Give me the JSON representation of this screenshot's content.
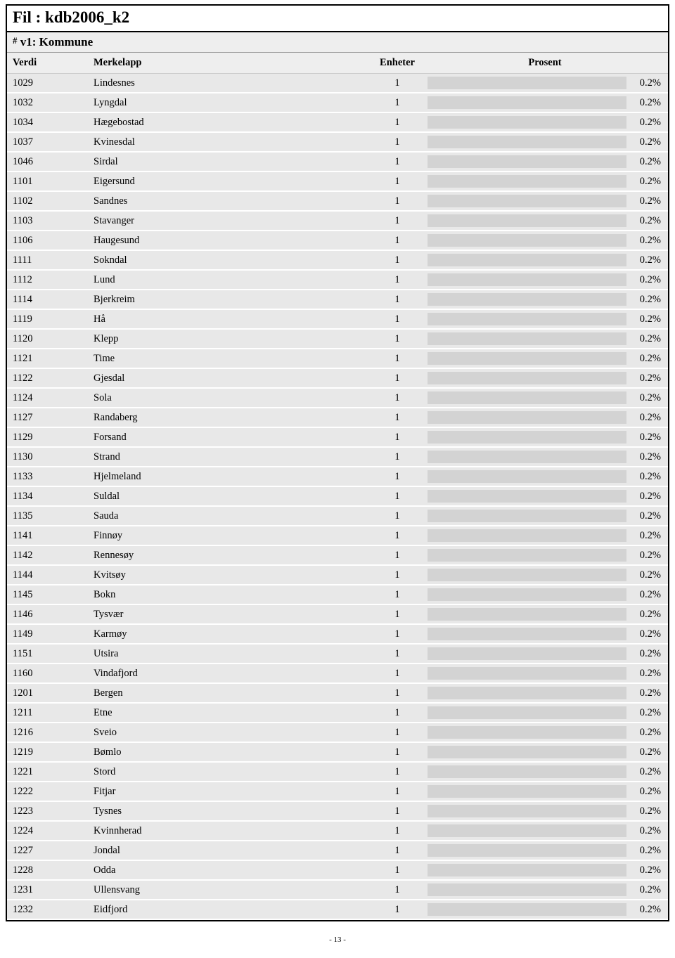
{
  "title_prefix": "Fil : ",
  "title_value": "kdb2006_k2",
  "subheader_hash": "#",
  "subheader_text": " v1: Kommune",
  "columns": {
    "verdi": "Verdi",
    "merkelapp": "Merkelapp",
    "enheter": "Enheter",
    "prosent": "Prosent"
  },
  "bar_color": "#d3d3d3",
  "row_bg": "#e8e8e8",
  "rows": [
    {
      "verdi": "1029",
      "merkelapp": "Lindesnes",
      "enheter": "1",
      "prosent": "0.2%"
    },
    {
      "verdi": "1032",
      "merkelapp": "Lyngdal",
      "enheter": "1",
      "prosent": "0.2%"
    },
    {
      "verdi": "1034",
      "merkelapp": "Hægebostad",
      "enheter": "1",
      "prosent": "0.2%"
    },
    {
      "verdi": "1037",
      "merkelapp": "Kvinesdal",
      "enheter": "1",
      "prosent": "0.2%"
    },
    {
      "verdi": "1046",
      "merkelapp": "Sirdal",
      "enheter": "1",
      "prosent": "0.2%"
    },
    {
      "verdi": "1101",
      "merkelapp": "Eigersund",
      "enheter": "1",
      "prosent": "0.2%"
    },
    {
      "verdi": "1102",
      "merkelapp": "Sandnes",
      "enheter": "1",
      "prosent": "0.2%"
    },
    {
      "verdi": "1103",
      "merkelapp": "Stavanger",
      "enheter": "1",
      "prosent": "0.2%"
    },
    {
      "verdi": "1106",
      "merkelapp": "Haugesund",
      "enheter": "1",
      "prosent": "0.2%"
    },
    {
      "verdi": "1111",
      "merkelapp": "Sokndal",
      "enheter": "1",
      "prosent": "0.2%"
    },
    {
      "verdi": "1112",
      "merkelapp": "Lund",
      "enheter": "1",
      "prosent": "0.2%"
    },
    {
      "verdi": "1114",
      "merkelapp": "Bjerkreim",
      "enheter": "1",
      "prosent": "0.2%"
    },
    {
      "verdi": "1119",
      "merkelapp": "Hå",
      "enheter": "1",
      "prosent": "0.2%"
    },
    {
      "verdi": "1120",
      "merkelapp": "Klepp",
      "enheter": "1",
      "prosent": "0.2%"
    },
    {
      "verdi": "1121",
      "merkelapp": "Time",
      "enheter": "1",
      "prosent": "0.2%"
    },
    {
      "verdi": "1122",
      "merkelapp": "Gjesdal",
      "enheter": "1",
      "prosent": "0.2%"
    },
    {
      "verdi": "1124",
      "merkelapp": "Sola",
      "enheter": "1",
      "prosent": "0.2%"
    },
    {
      "verdi": "1127",
      "merkelapp": "Randaberg",
      "enheter": "1",
      "prosent": "0.2%"
    },
    {
      "verdi": "1129",
      "merkelapp": "Forsand",
      "enheter": "1",
      "prosent": "0.2%"
    },
    {
      "verdi": "1130",
      "merkelapp": "Strand",
      "enheter": "1",
      "prosent": "0.2%"
    },
    {
      "verdi": "1133",
      "merkelapp": "Hjelmeland",
      "enheter": "1",
      "prosent": "0.2%"
    },
    {
      "verdi": "1134",
      "merkelapp": "Suldal",
      "enheter": "1",
      "prosent": "0.2%"
    },
    {
      "verdi": "1135",
      "merkelapp": "Sauda",
      "enheter": "1",
      "prosent": "0.2%"
    },
    {
      "verdi": "1141",
      "merkelapp": "Finnøy",
      "enheter": "1",
      "prosent": "0.2%"
    },
    {
      "verdi": "1142",
      "merkelapp": "Rennesøy",
      "enheter": "1",
      "prosent": "0.2%"
    },
    {
      "verdi": "1144",
      "merkelapp": "Kvitsøy",
      "enheter": "1",
      "prosent": "0.2%"
    },
    {
      "verdi": "1145",
      "merkelapp": "Bokn",
      "enheter": "1",
      "prosent": "0.2%"
    },
    {
      "verdi": "1146",
      "merkelapp": "Tysvær",
      "enheter": "1",
      "prosent": "0.2%"
    },
    {
      "verdi": "1149",
      "merkelapp": "Karmøy",
      "enheter": "1",
      "prosent": "0.2%"
    },
    {
      "verdi": "1151",
      "merkelapp": "Utsira",
      "enheter": "1",
      "prosent": "0.2%"
    },
    {
      "verdi": "1160",
      "merkelapp": "Vindafjord",
      "enheter": "1",
      "prosent": "0.2%"
    },
    {
      "verdi": "1201",
      "merkelapp": "Bergen",
      "enheter": "1",
      "prosent": "0.2%"
    },
    {
      "verdi": "1211",
      "merkelapp": "Etne",
      "enheter": "1",
      "prosent": "0.2%"
    },
    {
      "verdi": "1216",
      "merkelapp": "Sveio",
      "enheter": "1",
      "prosent": "0.2%"
    },
    {
      "verdi": "1219",
      "merkelapp": "Bømlo",
      "enheter": "1",
      "prosent": "0.2%"
    },
    {
      "verdi": "1221",
      "merkelapp": "Stord",
      "enheter": "1",
      "prosent": "0.2%"
    },
    {
      "verdi": "1222",
      "merkelapp": "Fitjar",
      "enheter": "1",
      "prosent": "0.2%"
    },
    {
      "verdi": "1223",
      "merkelapp": "Tysnes",
      "enheter": "1",
      "prosent": "0.2%"
    },
    {
      "verdi": "1224",
      "merkelapp": "Kvinnherad",
      "enheter": "1",
      "prosent": "0.2%"
    },
    {
      "verdi": "1227",
      "merkelapp": "Jondal",
      "enheter": "1",
      "prosent": "0.2%"
    },
    {
      "verdi": "1228",
      "merkelapp": "Odda",
      "enheter": "1",
      "prosent": "0.2%"
    },
    {
      "verdi": "1231",
      "merkelapp": "Ullensvang",
      "enheter": "1",
      "prosent": "0.2%"
    },
    {
      "verdi": "1232",
      "merkelapp": "Eidfjord",
      "enheter": "1",
      "prosent": "0.2%"
    }
  ],
  "page_number": "- 13 -"
}
